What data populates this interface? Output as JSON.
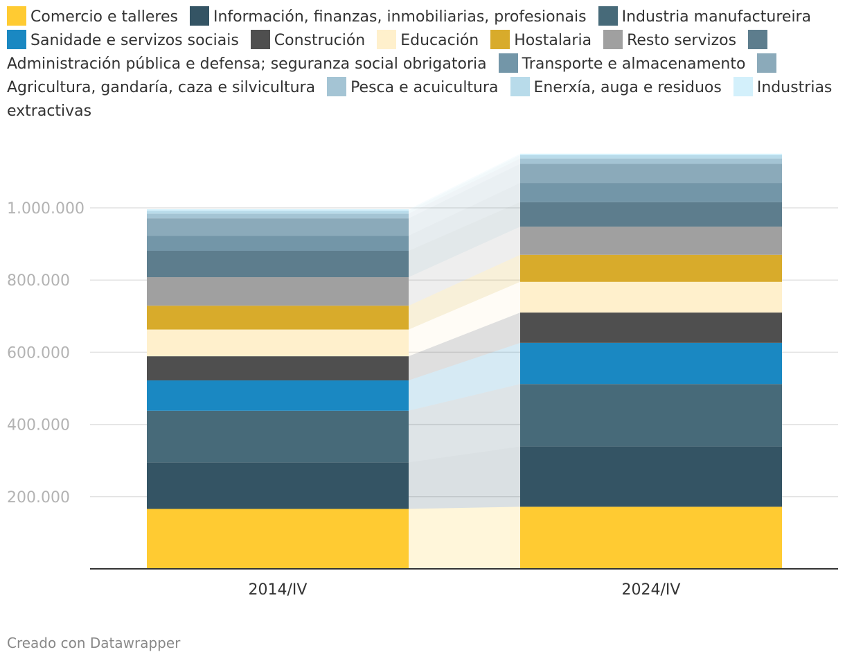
{
  "footer": "Creado con Datawrapper",
  "chart_data": {
    "type": "bar",
    "stacked": true,
    "categories": [
      "2014/IV",
      "2024/IV"
    ],
    "y_ticks": [
      200000,
      400000,
      600000,
      800000,
      1000000
    ],
    "y_tick_labels": [
      "200.000",
      "400.000",
      "600.000",
      "800.000",
      "1.000.000"
    ],
    "ylim": [
      0,
      1150000
    ],
    "series": [
      {
        "name": "Comercio e talleres",
        "color": "#ffcb32",
        "values": [
          166000,
          172000
        ]
      },
      {
        "name": "Información, finanzas, inmobiliarias, profesionais",
        "color": "#345464",
        "values": [
          129000,
          167000
        ]
      },
      {
        "name": "Industria manufactureira",
        "color": "#476a79",
        "values": [
          143000,
          173000
        ]
      },
      {
        "name": "Sanidade e servizos sociais",
        "color": "#1a88c2",
        "values": [
          84000,
          114000
        ]
      },
      {
        "name": "Construción",
        "color": "#4f4f4f",
        "values": [
          67000,
          84000
        ]
      },
      {
        "name": "Educación",
        "color": "#fff0cc",
        "values": [
          74000,
          85000
        ]
      },
      {
        "name": "Hostalaria",
        "color": "#d8ab2b",
        "values": [
          66000,
          75000
        ]
      },
      {
        "name": "Resto servizos",
        "color": "#a0a0a0",
        "values": [
          79000,
          78000
        ]
      },
      {
        "name": "Administración pública e defensa; seguranza social obrigatoria",
        "color": "#5d7d8d",
        "values": [
          73000,
          68000
        ]
      },
      {
        "name": "Transporte e almacenamento",
        "color": "#7396a8",
        "values": [
          42000,
          53000
        ]
      },
      {
        "name": "Agricultura, gandaría, caza e silvicultura",
        "color": "#8baaba",
        "values": [
          48000,
          53000
        ]
      },
      {
        "name": "Pesca e acuicultura",
        "color": "#a4c4d4",
        "values": [
          13000,
          15000
        ]
      },
      {
        "name": "Enerxía, auga e residuos",
        "color": "#b8dbea",
        "values": [
          8000,
          9000
        ]
      },
      {
        "name": "Industrias extractivas",
        "color": "#d3f0fb",
        "values": [
          4000,
          4000
        ]
      }
    ],
    "title": "",
    "xlabel": "",
    "ylabel": ""
  }
}
